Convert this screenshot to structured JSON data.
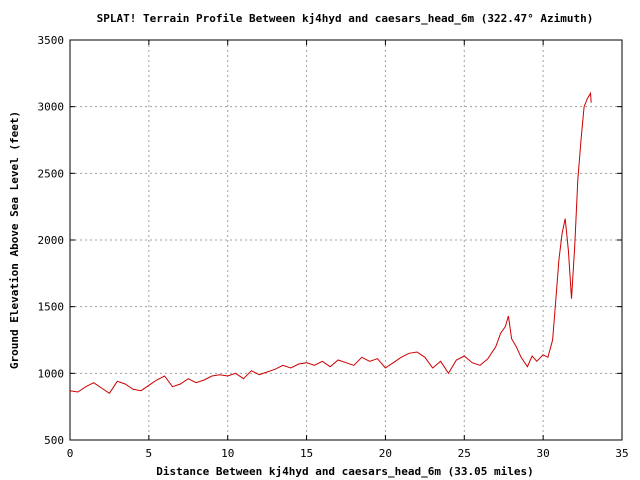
{
  "chart_data": {
    "type": "line",
    "title": "SPLAT! Terrain Profile Between kj4hyd and caesars_head_6m (322.47° Azimuth)",
    "xlabel": "Distance Between kj4hyd and caesars_head_6m (33.05 miles)",
    "ylabel": "Ground Elevation Above Sea Level (feet)",
    "xlim": [
      0,
      35
    ],
    "ylim": [
      500,
      3500
    ],
    "xticks": [
      "0",
      "5",
      "10",
      "15",
      "20",
      "25",
      "30",
      "35"
    ],
    "yticks": [
      "500",
      "1000",
      "1500",
      "2000",
      "2500",
      "3000",
      "3500"
    ],
    "grid": true,
    "legend": "none",
    "line_color": "#cc0000",
    "series": [
      {
        "x": [
          0.0,
          0.5,
          1.0,
          1.5,
          2.0,
          2.5,
          3.0,
          3.5,
          4.0,
          4.5,
          5.0,
          5.5,
          6.0,
          6.5,
          7.0,
          7.5,
          8.0,
          8.5,
          9.0,
          9.5,
          10.0,
          10.5,
          11.0,
          11.5,
          12.0,
          12.5,
          13.0,
          13.5,
          14.0,
          14.5,
          15.0,
          15.5,
          16.0,
          16.5,
          17.0,
          17.5,
          18.0,
          18.5,
          19.0,
          19.5,
          20.0,
          20.5,
          21.0,
          21.5,
          22.0,
          22.5,
          23.0,
          23.5,
          24.0,
          24.5,
          25.0,
          25.5,
          26.0,
          26.5,
          27.0,
          27.3,
          27.6,
          27.8,
          28.0,
          28.3,
          28.6,
          29.0,
          29.3,
          29.6,
          30.0,
          30.3,
          30.6,
          30.8,
          31.0,
          31.2,
          31.4,
          31.6,
          31.8,
          32.0,
          32.2,
          32.4,
          32.6,
          32.8,
          33.0,
          33.05
        ],
        "y": [
          870,
          860,
          900,
          930,
          890,
          850,
          940,
          920,
          880,
          870,
          910,
          950,
          980,
          900,
          920,
          960,
          930,
          950,
          980,
          990,
          980,
          1000,
          960,
          1020,
          990,
          1010,
          1030,
          1060,
          1040,
          1070,
          1080,
          1060,
          1090,
          1050,
          1100,
          1080,
          1060,
          1120,
          1090,
          1110,
          1040,
          1080,
          1120,
          1150,
          1160,
          1120,
          1040,
          1090,
          1000,
          1100,
          1130,
          1080,
          1060,
          1110,
          1200,
          1300,
          1350,
          1430,
          1260,
          1200,
          1120,
          1050,
          1130,
          1090,
          1140,
          1120,
          1250,
          1550,
          1850,
          2050,
          2160,
          1920,
          1560,
          1950,
          2450,
          2750,
          3000,
          3060,
          3100,
          3030
        ]
      }
    ]
  }
}
